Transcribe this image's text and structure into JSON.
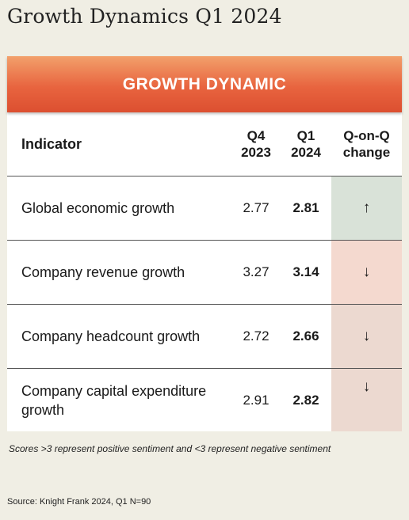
{
  "page_title": "Growth Dynamics Q1 2024",
  "banner": "GROWTH DYNAMIC",
  "header": {
    "indicator": "Indicator",
    "q4": [
      "Q4",
      "2023"
    ],
    "q1": [
      "Q1",
      "2024"
    ],
    "change": [
      "Q-on-Q",
      "change"
    ]
  },
  "rows": [
    {
      "indicator": "Global economic growth",
      "q4": "2.77",
      "q1": "2.81",
      "change": "↑",
      "change_bg": "#d9e2d8"
    },
    {
      "indicator": "Company revenue growth",
      "q4": "3.27",
      "q1": "3.14",
      "change": "↓",
      "change_bg": "#f4d9cf"
    },
    {
      "indicator": "Company headcount growth",
      "q4": "2.72",
      "q1": "2.66",
      "change": "↓",
      "change_bg": "#ecd9d0"
    },
    {
      "indicator": "Company capital expenditure growth",
      "q4": "2.91",
      "q1": "2.82",
      "change": "↓",
      "change_bg": "#ecd9d0"
    }
  ],
  "note": "Scores >3 represent positive sentiment and <3 represent negative sentiment",
  "source": "Source: Knight Frank 2024, Q1 N=90"
}
